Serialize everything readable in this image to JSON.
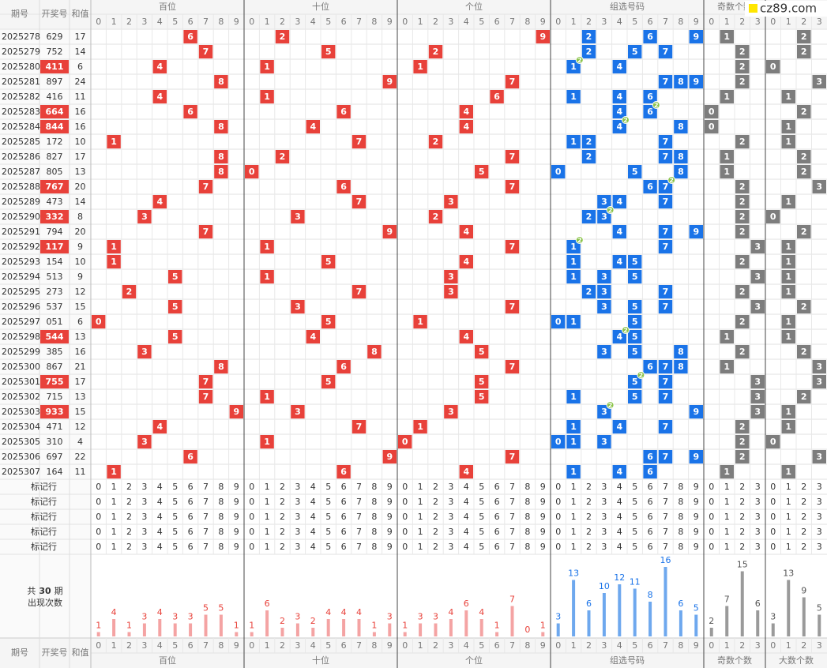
{
  "headers": {
    "period": "期号",
    "number": "开奖号",
    "sum": "和值",
    "bai": "百位",
    "shi": "十位",
    "ge": "个位",
    "group": "组选号码",
    "odd": "奇数个数",
    "big": "大数个数"
  },
  "watermark": "cz89.com",
  "digits": [
    0,
    1,
    2,
    3,
    4,
    5,
    6,
    7,
    8,
    9
  ],
  "count_digits": [
    0,
    1,
    2,
    3
  ],
  "rows": [
    [
      2025278,
      "629",
      17,
      6,
      2,
      9,
      [
        2,
        6,
        9
      ],
      null,
      1,
      2
    ],
    [
      2025279,
      "752",
      14,
      7,
      5,
      2,
      [
        2,
        5,
        7
      ],
      null,
      2,
      2
    ],
    [
      2025280,
      "411",
      6,
      4,
      1,
      1,
      [
        1,
        4
      ],
      [
        1,
        2
      ],
      2,
      0
    ],
    [
      2025281,
      "897",
      24,
      8,
      9,
      7,
      [
        7,
        8,
        9
      ],
      null,
      2,
      3
    ],
    [
      2025282,
      "416",
      11,
      4,
      1,
      6,
      [
        1,
        4,
        6
      ],
      null,
      1,
      1
    ],
    [
      2025283,
      "664",
      16,
      6,
      6,
      4,
      [
        4,
        6
      ],
      [
        6,
        2
      ],
      0,
      2
    ],
    [
      2025284,
      "844",
      16,
      8,
      4,
      4,
      [
        4,
        8
      ],
      [
        4,
        2
      ],
      0,
      1
    ],
    [
      2025285,
      "172",
      10,
      1,
      7,
      2,
      [
        1,
        2,
        7
      ],
      null,
      2,
      1
    ],
    [
      2025286,
      "827",
      17,
      8,
      2,
      7,
      [
        2,
        7,
        8
      ],
      null,
      1,
      2
    ],
    [
      2025287,
      "805",
      13,
      8,
      0,
      5,
      [
        0,
        5,
        8
      ],
      null,
      1,
      2
    ],
    [
      2025288,
      "767",
      20,
      7,
      6,
      7,
      [
        6,
        7
      ],
      [
        7,
        2
      ],
      2,
      3
    ],
    [
      2025289,
      "473",
      14,
      4,
      7,
      3,
      [
        3,
        4,
        7
      ],
      null,
      2,
      1
    ],
    [
      2025290,
      "332",
      8,
      3,
      3,
      2,
      [
        2,
        3
      ],
      [
        3,
        2
      ],
      2,
      0
    ],
    [
      2025291,
      "794",
      20,
      7,
      9,
      4,
      [
        4,
        7,
        9
      ],
      null,
      2,
      2
    ],
    [
      2025292,
      "117",
      9,
      1,
      1,
      7,
      [
        1,
        7
      ],
      [
        1,
        2
      ],
      3,
      1
    ],
    [
      2025293,
      "154",
      10,
      1,
      5,
      4,
      [
        1,
        4,
        5
      ],
      null,
      2,
      1
    ],
    [
      2025294,
      "513",
      9,
      5,
      1,
      3,
      [
        1,
        3,
        5
      ],
      null,
      3,
      1
    ],
    [
      2025295,
      "273",
      12,
      2,
      7,
      3,
      [
        2,
        3,
        7
      ],
      null,
      2,
      1
    ],
    [
      2025296,
      "537",
      15,
      5,
      3,
      7,
      [
        3,
        5,
        7
      ],
      null,
      3,
      2
    ],
    [
      2025297,
      "051",
      6,
      0,
      5,
      1,
      [
        0,
        1,
        5
      ],
      null,
      2,
      1
    ],
    [
      2025298,
      "544",
      13,
      5,
      4,
      4,
      [
        4,
        5
      ],
      [
        4,
        2
      ],
      1,
      1
    ],
    [
      2025299,
      "385",
      16,
      3,
      8,
      5,
      [
        3,
        5,
        8
      ],
      null,
      2,
      2
    ],
    [
      2025300,
      "867",
      21,
      8,
      6,
      7,
      [
        6,
        7,
        8
      ],
      null,
      1,
      3
    ],
    [
      2025301,
      "755",
      17,
      7,
      5,
      5,
      [
        5,
        7
      ],
      [
        5,
        2
      ],
      3,
      3
    ],
    [
      2025302,
      "715",
      13,
      7,
      1,
      5,
      [
        1,
        5,
        7
      ],
      null,
      3,
      2
    ],
    [
      2025303,
      "933",
      15,
      9,
      3,
      3,
      [
        3,
        9
      ],
      [
        3,
        2
      ],
      3,
      1
    ],
    [
      2025304,
      "471",
      12,
      4,
      7,
      1,
      [
        1,
        4,
        7
      ],
      null,
      2,
      1
    ],
    [
      2025305,
      "310",
      4,
      3,
      1,
      0,
      [
        0,
        1,
        3
      ],
      null,
      2,
      0
    ],
    [
      2025306,
      "697",
      22,
      6,
      9,
      7,
      [
        6,
        7,
        9
      ],
      null,
      2,
      3
    ],
    [
      2025307,
      "164",
      11,
      1,
      6,
      4,
      [
        1,
        4,
        6
      ],
      null,
      1,
      1
    ]
  ],
  "mark_rows": [
    "标记行",
    "标记行",
    "标记行",
    "标记行",
    "标记行"
  ],
  "stats_label": {
    "prefix": "共",
    "periods": 30,
    "suffix": "期",
    "line2": "出现次数"
  },
  "counts": {
    "bai": [
      1,
      4,
      1,
      3,
      4,
      3,
      3,
      5,
      5,
      1
    ],
    "shi": [
      1,
      6,
      2,
      3,
      2,
      4,
      4,
      4,
      1,
      3
    ],
    "ge": [
      1,
      3,
      3,
      4,
      6,
      4,
      1,
      7,
      0,
      1
    ],
    "group": [
      3,
      13,
      6,
      10,
      12,
      11,
      8,
      16,
      6,
      5
    ],
    "odd": [
      2,
      7,
      15,
      6
    ],
    "big": [
      3,
      13,
      9,
      5
    ]
  }
}
